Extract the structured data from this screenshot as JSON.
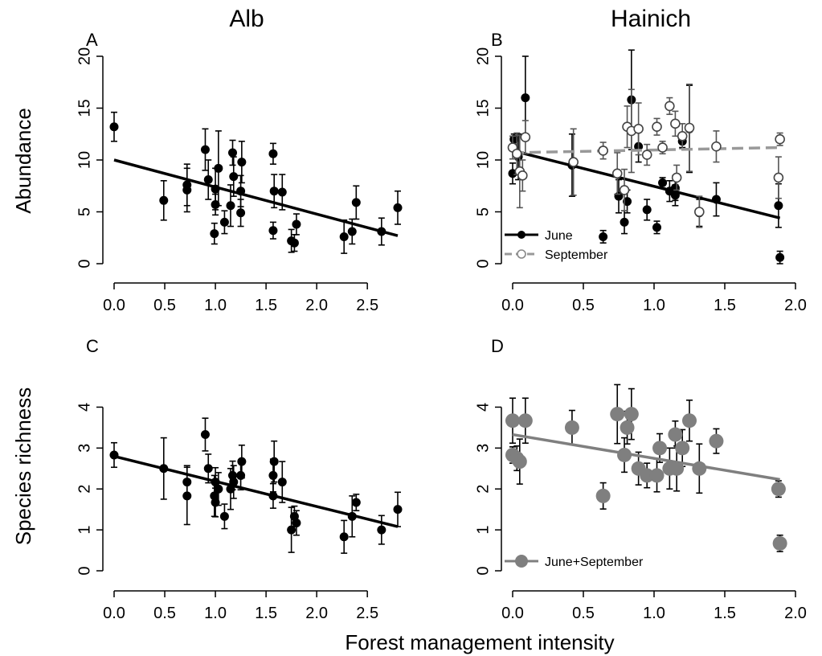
{
  "figure": {
    "col_titles": [
      "Alb",
      "Hainich"
    ],
    "ylabel_top": "Abundance",
    "ylabel_bottom": "Species richness",
    "xlabel": "Forest management intensity"
  },
  "chart_data": [
    {
      "panel": "A",
      "type": "scatter",
      "xlim": [
        0,
        2.8
      ],
      "ylim": [
        0,
        20
      ],
      "xticks": [
        "0.0",
        "0.5",
        "1.0",
        "1.5",
        "2.0",
        "2.5"
      ],
      "yticks": [
        "0",
        "5",
        "10",
        "15",
        "20"
      ],
      "grid": false,
      "series": [
        {
          "color": "#000000",
          "marker": "filled",
          "points": [
            {
              "x": 0.0,
              "y": 13.2,
              "err": 1.4
            },
            {
              "x": 0.49,
              "y": 6.1,
              "err": 1.9
            },
            {
              "x": 0.72,
              "y": 7.1,
              "err": 2.1
            },
            {
              "x": 0.72,
              "y": 7.6,
              "err": 2.0
            },
            {
              "x": 0.9,
              "y": 11.0,
              "err": 2.0
            },
            {
              "x": 0.93,
              "y": 8.1,
              "err": 1.9
            },
            {
              "x": 0.99,
              "y": 2.9,
              "err": 1.0
            },
            {
              "x": 1.0,
              "y": 5.7,
              "err": 1.0
            },
            {
              "x": 1.0,
              "y": 7.2,
              "err": 2.0
            },
            {
              "x": 1.03,
              "y": 9.2,
              "err": 3.6
            },
            {
              "x": 1.09,
              "y": 4.0,
              "err": 1.1
            },
            {
              "x": 1.15,
              "y": 5.6,
              "err": 2.0
            },
            {
              "x": 1.17,
              "y": 10.7,
              "err": 1.2
            },
            {
              "x": 1.18,
              "y": 8.4,
              "err": 1.9
            },
            {
              "x": 1.25,
              "y": 4.9,
              "err": 1.3
            },
            {
              "x": 1.25,
              "y": 7.0,
              "err": 1.5
            },
            {
              "x": 1.26,
              "y": 9.8,
              "err": 2.0
            },
            {
              "x": 1.57,
              "y": 10.6,
              "err": 1.0
            },
            {
              "x": 1.57,
              "y": 3.2,
              "err": 0.8
            },
            {
              "x": 1.58,
              "y": 7.0,
              "err": 1.6
            },
            {
              "x": 1.66,
              "y": 6.9,
              "err": 1.7
            },
            {
              "x": 1.75,
              "y": 2.2,
              "err": 1.1
            },
            {
              "x": 1.78,
              "y": 2.0,
              "err": 0.8
            },
            {
              "x": 1.8,
              "y": 3.8,
              "err": 1.0
            },
            {
              "x": 2.27,
              "y": 2.6,
              "err": 1.6
            },
            {
              "x": 2.35,
              "y": 3.1,
              "err": 1.2
            },
            {
              "x": 2.39,
              "y": 5.9,
              "err": 1.6
            },
            {
              "x": 2.64,
              "y": 3.1,
              "err": 1.3
            },
            {
              "x": 2.8,
              "y": 5.4,
              "err": 1.6
            }
          ],
          "fit": {
            "x": [
              0,
              2.8
            ],
            "y": [
              10.0,
              2.7
            ],
            "dash": false
          }
        }
      ]
    },
    {
      "panel": "B",
      "type": "scatter",
      "xlim": [
        0,
        2.0
      ],
      "ylim": [
        0,
        20
      ],
      "xticks": [
        "0.0",
        "0.5",
        "1.0",
        "1.5",
        "2.0"
      ],
      "yticks": [
        "0",
        "5",
        "10",
        "15",
        "20"
      ],
      "grid": false,
      "legend_position": "bottom-left",
      "series": [
        {
          "name": "June",
          "color": "#000000",
          "marker": "filled",
          "points": [
            {
              "x": 0.0,
              "y": 8.7,
              "err": 1.0
            },
            {
              "x": 0.01,
              "y": 12.0,
              "err": 0.5
            },
            {
              "x": 0.04,
              "y": 10.3,
              "err": 2.2
            },
            {
              "x": 0.09,
              "y": 16.0,
              "err": 4.0
            },
            {
              "x": 0.42,
              "y": 9.5,
              "err": 3.0
            },
            {
              "x": 0.64,
              "y": 2.6,
              "err": 0.6
            },
            {
              "x": 0.75,
              "y": 6.5,
              "err": 1.6
            },
            {
              "x": 0.79,
              "y": 4.0,
              "err": 1.1
            },
            {
              "x": 0.81,
              "y": 6.0,
              "err": 1.1
            },
            {
              "x": 0.84,
              "y": 15.8,
              "err": 4.8
            },
            {
              "x": 0.89,
              "y": 11.3,
              "err": 1.5
            },
            {
              "x": 0.95,
              "y": 5.2,
              "err": 1.0
            },
            {
              "x": 1.02,
              "y": 3.5,
              "err": 0.6
            },
            {
              "x": 1.06,
              "y": 7.8,
              "err": 0.5
            },
            {
              "x": 1.11,
              "y": 7.0,
              "err": 1.0
            },
            {
              "x": 1.15,
              "y": 7.3,
              "err": 1.2
            },
            {
              "x": 1.15,
              "y": 6.6,
              "err": 1.0
            },
            {
              "x": 1.2,
              "y": 11.8,
              "err": 0.6
            },
            {
              "x": 1.25,
              "y": 13.0,
              "err": 4.2
            },
            {
              "x": 1.32,
              "y": 4.9,
              "err": 1.3
            },
            {
              "x": 1.44,
              "y": 6.2,
              "err": 1.6
            },
            {
              "x": 1.88,
              "y": 5.6,
              "err": 2.1
            },
            {
              "x": 1.89,
              "y": 0.6,
              "err": 0.6
            }
          ],
          "fit": {
            "x": [
              0,
              1.89
            ],
            "y": [
              10.9,
              4.4
            ],
            "dash": false
          }
        },
        {
          "name": "September",
          "color": "#999999",
          "marker": "open",
          "points": [
            {
              "x": 0.0,
              "y": 11.2,
              "err": 1.1
            },
            {
              "x": 0.03,
              "y": 10.6,
              "err": 2.0
            },
            {
              "x": 0.05,
              "y": 8.9,
              "err": 3.5
            },
            {
              "x": 0.07,
              "y": 8.5,
              "err": 1.5
            },
            {
              "x": 0.09,
              "y": 12.2,
              "err": 1.6
            },
            {
              "x": 0.43,
              "y": 9.8,
              "err": 3.2
            },
            {
              "x": 0.64,
              "y": 10.9,
              "err": 0.8
            },
            {
              "x": 0.74,
              "y": 8.7,
              "err": 2.0
            },
            {
              "x": 0.79,
              "y": 7.1,
              "err": 2.0
            },
            {
              "x": 0.81,
              "y": 13.2,
              "err": 2.0
            },
            {
              "x": 0.84,
              "y": 12.8,
              "err": 4.0
            },
            {
              "x": 0.89,
              "y": 13.0,
              "err": 2.5
            },
            {
              "x": 0.95,
              "y": 10.5,
              "err": 1.0
            },
            {
              "x": 1.02,
              "y": 13.2,
              "err": 0.8
            },
            {
              "x": 1.06,
              "y": 11.2,
              "err": 0.6
            },
            {
              "x": 1.11,
              "y": 15.2,
              "err": 0.8
            },
            {
              "x": 1.15,
              "y": 13.5,
              "err": 1.2
            },
            {
              "x": 1.16,
              "y": 8.3,
              "err": 1.2
            },
            {
              "x": 1.2,
              "y": 12.3,
              "err": 1.2
            },
            {
              "x": 1.25,
              "y": 13.1,
              "err": 4.2
            },
            {
              "x": 1.32,
              "y": 5.0,
              "err": 1.5
            },
            {
              "x": 1.44,
              "y": 11.3,
              "err": 1.5
            },
            {
              "x": 1.88,
              "y": 8.3,
              "err": 2.0
            },
            {
              "x": 1.89,
              "y": 12.0,
              "err": 0.6
            }
          ],
          "fit": {
            "x": [
              0,
              1.89
            ],
            "y": [
              10.7,
              11.2
            ],
            "dash": true
          }
        }
      ]
    },
    {
      "panel": "C",
      "type": "scatter",
      "xlim": [
        0,
        2.8
      ],
      "ylim": [
        0,
        4.5
      ],
      "xticks": [
        "0.0",
        "0.5",
        "1.0",
        "1.5",
        "2.0",
        "2.5"
      ],
      "yticks": [
        "0",
        "1",
        "2",
        "3",
        "4"
      ],
      "grid": false,
      "series": [
        {
          "color": "#000000",
          "marker": "filled",
          "points": [
            {
              "x": 0.0,
              "y": 2.83,
              "err": 0.3
            },
            {
              "x": 0.49,
              "y": 2.5,
              "err": 0.75
            },
            {
              "x": 0.72,
              "y": 2.17,
              "err": 0.4
            },
            {
              "x": 0.72,
              "y": 1.83,
              "err": 0.7
            },
            {
              "x": 0.9,
              "y": 3.33,
              "err": 0.4
            },
            {
              "x": 0.93,
              "y": 2.5,
              "err": 0.35
            },
            {
              "x": 0.99,
              "y": 1.83,
              "err": 0.5
            },
            {
              "x": 1.0,
              "y": 2.17,
              "err": 0.35
            },
            {
              "x": 1.0,
              "y": 1.67,
              "err": 0.35
            },
            {
              "x": 1.03,
              "y": 2.0,
              "err": 0.4
            },
            {
              "x": 1.09,
              "y": 1.33,
              "err": 0.3
            },
            {
              "x": 1.15,
              "y": 2.0,
              "err": 0.5
            },
            {
              "x": 1.17,
              "y": 2.33,
              "err": 0.35
            },
            {
              "x": 1.18,
              "y": 2.17,
              "err": 0.4
            },
            {
              "x": 1.25,
              "y": 2.33,
              "err": 0.35
            },
            {
              "x": 1.26,
              "y": 2.67,
              "err": 0.4
            },
            {
              "x": 1.57,
              "y": 2.33,
              "err": 0.4
            },
            {
              "x": 1.58,
              "y": 2.67,
              "err": 0.5
            },
            {
              "x": 1.57,
              "y": 1.83,
              "err": 0.3
            },
            {
              "x": 1.66,
              "y": 2.17,
              "err": 0.5
            },
            {
              "x": 1.75,
              "y": 1.0,
              "err": 0.55
            },
            {
              "x": 1.78,
              "y": 1.33,
              "err": 0.25
            },
            {
              "x": 1.8,
              "y": 1.17,
              "err": 0.3
            },
            {
              "x": 2.27,
              "y": 0.83,
              "err": 0.4
            },
            {
              "x": 2.35,
              "y": 1.33,
              "err": 0.5
            },
            {
              "x": 2.39,
              "y": 1.67,
              "err": 0.2
            },
            {
              "x": 2.64,
              "y": 1.0,
              "err": 0.35
            },
            {
              "x": 2.8,
              "y": 1.5,
              "err": 0.42
            }
          ],
          "fit": {
            "x": [
              0,
              2.8
            ],
            "y": [
              2.8,
              1.08
            ],
            "dash": false
          }
        }
      ]
    },
    {
      "panel": "D",
      "type": "scatter",
      "xlim": [
        0,
        2.0
      ],
      "ylim": [
        0,
        4.5
      ],
      "xticks": [
        "0.0",
        "0.5",
        "1.0",
        "1.5",
        "2.0"
      ],
      "yticks": [
        "0",
        "1",
        "2",
        "3",
        "4"
      ],
      "grid": false,
      "legend_position": "bottom-left",
      "series": [
        {
          "name": "June+September",
          "color": "#7f7f7f",
          "marker": "filled-large",
          "points": [
            {
              "x": 0.0,
              "y": 3.67,
              "err": 0.55
            },
            {
              "x": 0.0,
              "y": 2.83,
              "err": 0.2
            },
            {
              "x": 0.03,
              "y": 2.75,
              "err": 0.3
            },
            {
              "x": 0.05,
              "y": 2.67,
              "err": 0.55
            },
            {
              "x": 0.09,
              "y": 3.67,
              "err": 0.55
            },
            {
              "x": 0.42,
              "y": 3.5,
              "err": 0.42
            },
            {
              "x": 0.64,
              "y": 1.83,
              "err": 0.32
            },
            {
              "x": 0.74,
              "y": 3.83,
              "err": 0.72
            },
            {
              "x": 0.79,
              "y": 2.83,
              "err": 0.42
            },
            {
              "x": 0.81,
              "y": 3.5,
              "err": 0.4
            },
            {
              "x": 0.84,
              "y": 3.83,
              "err": 0.62
            },
            {
              "x": 0.89,
              "y": 2.5,
              "err": 0.4
            },
            {
              "x": 0.95,
              "y": 2.33,
              "err": 0.3
            },
            {
              "x": 1.02,
              "y": 2.33,
              "err": 0.4
            },
            {
              "x": 1.04,
              "y": 3.0,
              "err": 0.35
            },
            {
              "x": 1.11,
              "y": 2.5,
              "err": 0.5
            },
            {
              "x": 1.15,
              "y": 3.33,
              "err": 0.33
            },
            {
              "x": 1.16,
              "y": 2.5,
              "err": 0.55
            },
            {
              "x": 1.2,
              "y": 3.0,
              "err": 0.45
            },
            {
              "x": 1.25,
              "y": 3.67,
              "err": 0.5
            },
            {
              "x": 1.32,
              "y": 2.5,
              "err": 0.6
            },
            {
              "x": 1.44,
              "y": 3.17,
              "err": 0.3
            },
            {
              "x": 1.88,
              "y": 2.0,
              "err": 0.2
            },
            {
              "x": 1.89,
              "y": 0.67,
              "err": 0.2
            }
          ],
          "fit": {
            "x": [
              0,
              1.89
            ],
            "y": [
              3.33,
              2.23
            ],
            "dash": false
          }
        }
      ]
    }
  ]
}
